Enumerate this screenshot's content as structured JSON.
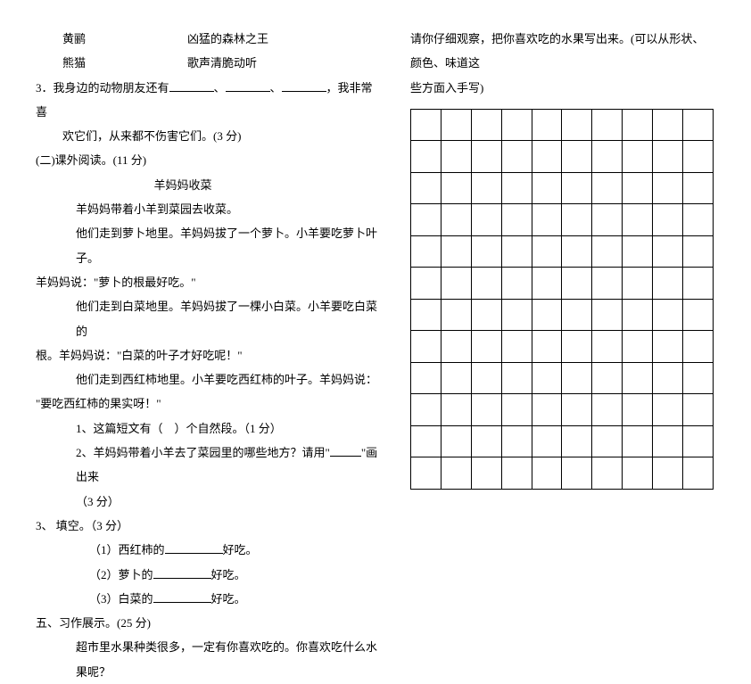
{
  "left": {
    "pair1_a": "黄鹂",
    "pair1_b": "凶猛的森林之王",
    "pair2_a": "熊猫",
    "pair2_b": "歌声清脆动听",
    "q3_prefix": "3．我身边的动物朋友还有",
    "q3_sep": "、",
    "q3_suffix1": "，我非常喜",
    "q3_line2": "欢它们，从来都不伤害它们。(3 分)",
    "section2": "(二)课外阅读。(11 分)",
    "story_title": "羊妈妈收菜",
    "story_p1": "羊妈妈带着小羊到菜园去收菜。",
    "story_p2": "他们走到萝卜地里。羊妈妈拔了一个萝卜。小羊要吃萝卜叶子。",
    "story_p3": "羊妈妈说：\"萝卜的根最好吃。\"",
    "story_p4": "他们走到白菜地里。羊妈妈拔了一棵小白菜。小羊要吃白菜的",
    "story_p5": "根。羊妈妈说：\"白菜的叶子才好吃呢！\"",
    "story_p6": "他们走到西红柿地里。小羊要吃西红柿的叶子。羊妈妈说：",
    "story_p7": "\"要吃西红柿的果实呀！\"",
    "sq1": "1、这篇短文有（　）个自然段。（1 分）",
    "sq2a": "2、羊妈妈带着小羊去了菜园里的哪些地方？请用\"",
    "sq2b": "\"画出来",
    "sq2_line2": "（3 分）",
    "fill_title": "3、 填空。（3 分）",
    "fill1a": "（1）西红柿的",
    "fill1b": "好吃。",
    "fill2a": "（2）萝卜的",
    "fill2b": "好吃。",
    "fill3a": "（3）白菜的",
    "fill3b": "好吃。",
    "section5": "五、习作展示。(25 分)",
    "comp_line": "超市里水果种类很多，一定有你喜欢吃的。你喜欢吃什么水果呢？"
  },
  "right": {
    "line1": "请你仔细观察，把你喜欢吃的水果写出来。(可以从形状、颜色、味道这",
    "line2": "些方面入手写)"
  },
  "grid": {
    "rows": 12,
    "cols": 10,
    "cell_size": 34,
    "border_color": "#000000"
  }
}
